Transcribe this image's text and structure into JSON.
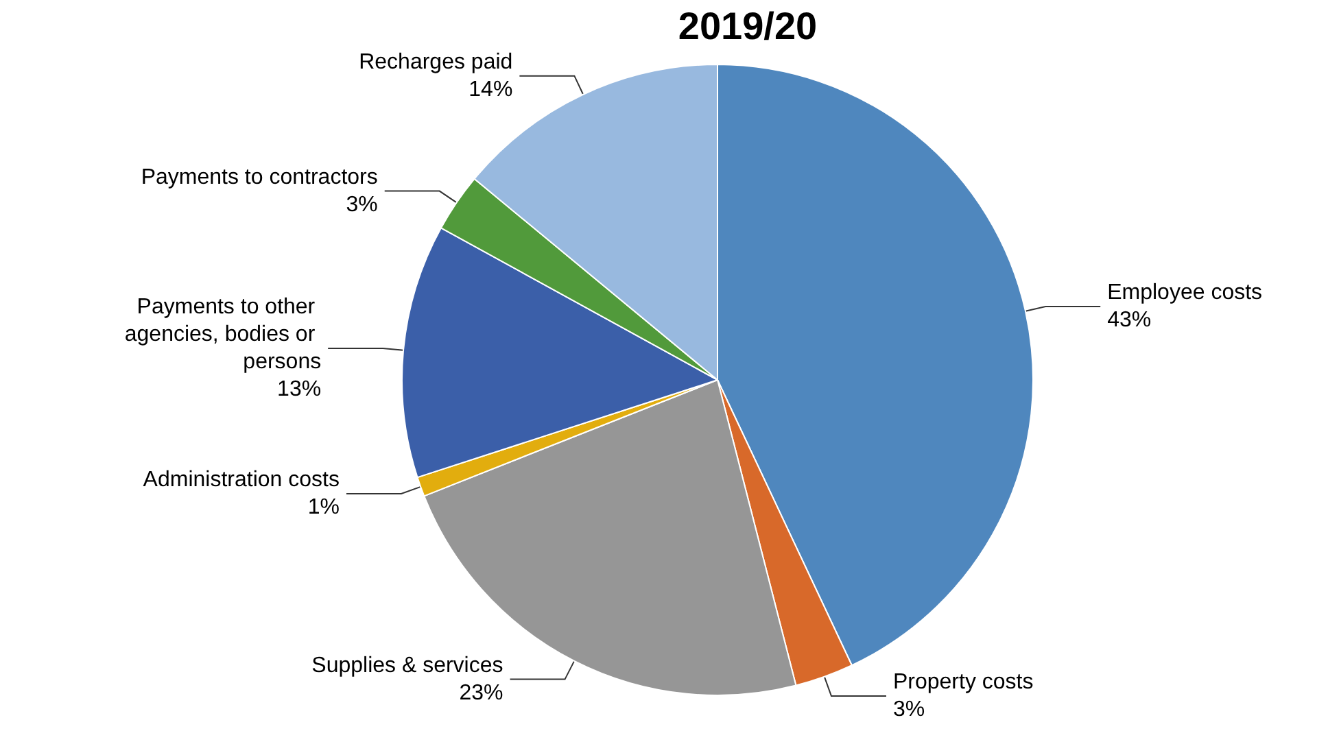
{
  "chart_data": {
    "type": "pie",
    "title": "2019/20",
    "categories": [
      "Employee costs",
      "Property costs",
      "Supplies & services",
      "Administration costs",
      "Payments to other agencies, bodies or persons",
      "Payments to contractors",
      "Recharges paid"
    ],
    "values": [
      43,
      3,
      23,
      1,
      13,
      3,
      14
    ],
    "value_labels": [
      "43%",
      "3%",
      "23%",
      "1%",
      "13%",
      "3%",
      "14%"
    ],
    "colors": [
      "#4f87be",
      "#d8692a",
      "#969696",
      "#e2ad0e",
      "#3b5fa9",
      "#519a3b",
      "#98b9df"
    ],
    "legend": false
  }
}
